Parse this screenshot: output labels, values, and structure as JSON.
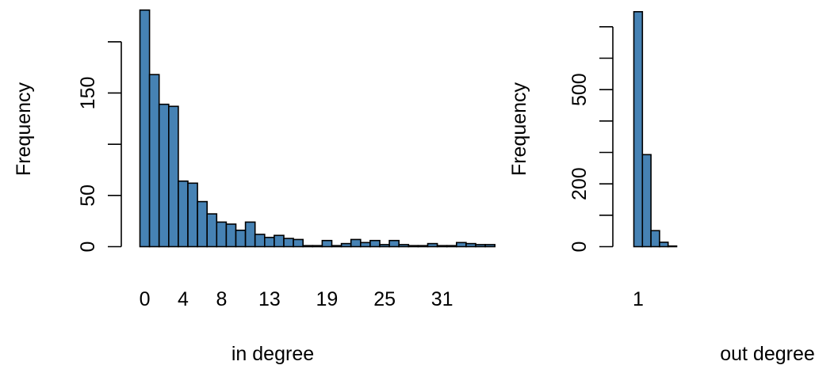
{
  "chart_data": [
    {
      "type": "bar",
      "xlabel": "in degree",
      "ylabel": "Frequency",
      "ylim": [
        0,
        230
      ],
      "yticks": [
        0,
        50,
        100,
        150,
        200
      ],
      "ytick_labels": [
        "0",
        "50",
        "",
        "150",
        ""
      ],
      "xtick_labels": [
        {
          "at": 0,
          "label": "0"
        },
        {
          "at": 4,
          "label": "4"
        },
        {
          "at": 8,
          "label": "8"
        },
        {
          "at": 13,
          "label": "13"
        },
        {
          "at": 19,
          "label": "19"
        },
        {
          "at": 25,
          "label": "25"
        },
        {
          "at": 31,
          "label": "31"
        }
      ],
      "categories": [
        "0",
        "1",
        "2",
        "3",
        "4",
        "5",
        "6",
        "7",
        "8",
        "9",
        "10",
        "11",
        "12",
        "13",
        "14",
        "15",
        "16",
        "17",
        "18",
        "19",
        "20",
        "21",
        "22",
        "23",
        "24",
        "25",
        "26",
        "27",
        "28",
        "29",
        "30",
        "31",
        "32",
        "33",
        "34",
        "35",
        "36"
      ],
      "values": [
        231,
        168,
        139,
        137,
        64,
        62,
        44,
        32,
        24,
        22,
        16,
        24,
        12,
        9,
        11,
        8,
        7,
        1,
        1,
        6,
        1,
        3,
        7,
        4,
        6,
        2,
        6,
        2,
        1,
        1,
        3,
        1,
        1,
        4,
        3,
        2,
        2
      ],
      "bar_color": "#4682B4"
    },
    {
      "type": "bar",
      "xlabel": "out degree",
      "ylabel": "Frequency",
      "ylim": [
        0,
        750
      ],
      "yticks": [
        0,
        100,
        200,
        300,
        400,
        500,
        600,
        700
      ],
      "ytick_labels": [
        "0",
        "",
        "200",
        "",
        "",
        "500",
        "",
        ""
      ],
      "xtick_labels": [
        {
          "at": 1,
          "label": "1"
        }
      ],
      "categories": [
        "1",
        "2",
        "3",
        "4",
        "5"
      ],
      "values": [
        748,
        293,
        51,
        14,
        2
      ],
      "bar_color": "#4682B4"
    }
  ]
}
